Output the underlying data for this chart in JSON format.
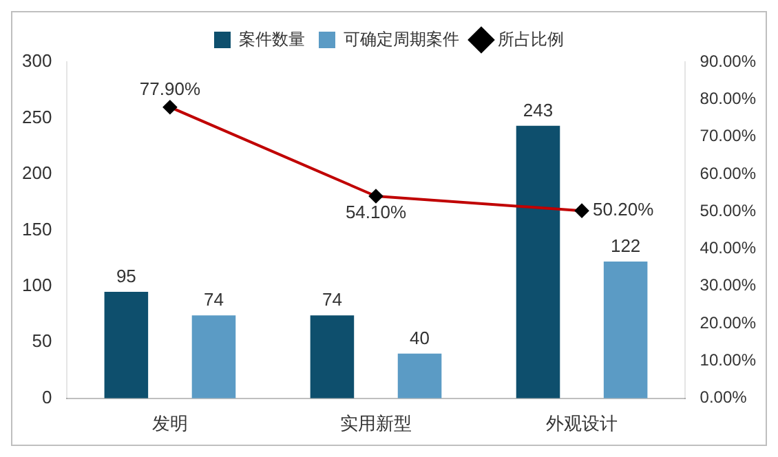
{
  "chart_data": {
    "type": "bar",
    "categories": [
      "发明",
      "实用新型",
      "外观设计"
    ],
    "series": [
      {
        "name": "案件数量",
        "color": "#0e4f6d",
        "values": [
          95,
          74,
          243
        ],
        "value_labels": [
          "95",
          "74",
          "243"
        ]
      },
      {
        "name": "可确定周期案件",
        "color": "#5b9bc5",
        "values": [
          74,
          40,
          122
        ],
        "value_labels": [
          "74",
          "40",
          "122"
        ]
      },
      {
        "name": "所占比例",
        "type": "line",
        "axis": "y2",
        "color": "#c00000",
        "marker": "diamond",
        "values": [
          77.9,
          54.1,
          50.2
        ],
        "value_labels": [
          "77.90%",
          "54.10%",
          "50.20%"
        ]
      }
    ],
    "ylim": [
      0,
      300
    ],
    "yticks": [
      0,
      50,
      100,
      150,
      200,
      250,
      300
    ],
    "y2lim": [
      0,
      90
    ],
    "y2ticks": [
      {
        "value": 0,
        "label": "0.00%"
      },
      {
        "value": 10,
        "label": "10.00%"
      },
      {
        "value": 20,
        "label": "20.00%"
      },
      {
        "value": 30,
        "label": "30.00%"
      },
      {
        "value": 40,
        "label": "40.00%"
      },
      {
        "value": 50,
        "label": "50.00%"
      },
      {
        "value": 60,
        "label": "60.00%"
      },
      {
        "value": 70,
        "label": "70.00%"
      },
      {
        "value": 80,
        "label": "80.00%"
      },
      {
        "value": 90,
        "label": "90.00%"
      }
    ],
    "grid": false,
    "legend": "top"
  }
}
